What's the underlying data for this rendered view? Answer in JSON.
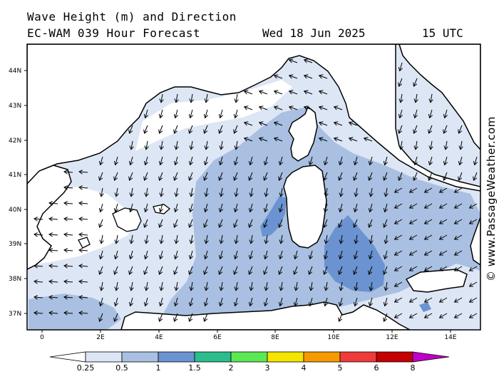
{
  "header": {
    "title": "Wave Height (m) and Direction",
    "model": "EC-WAM 039 Hour Forecast",
    "date": "Wed 18 Jun 2025",
    "time": "15 UTC"
  },
  "credit": "© www.PassageWeather.com",
  "lat_labels": [
    "44N",
    "43N",
    "42N",
    "41N",
    "40N",
    "39N",
    "38N",
    "37N"
  ],
  "lon_labels": [
    "0",
    "2E",
    "4E",
    "6E",
    "8E",
    "10E",
    "12E",
    "14E"
  ],
  "legend": {
    "labels": [
      "0.25",
      "0.5",
      "1",
      "1.5",
      "2",
      "3",
      "4",
      "5",
      "6",
      "8"
    ],
    "colors": [
      "#ffffff",
      "#dde6f4",
      "#a9c0e2",
      "#6b93d1",
      "#2bbd8d",
      "#5ce855",
      "#f4e500",
      "#f79a00",
      "#ef3b3b",
      "#c40000",
      "#c000c8"
    ]
  },
  "colors": {
    "land": "#ffffff",
    "sea_calm": "#dde6f4",
    "sea_mid": "#a9c0e2",
    "sea_high": "#6b93d1"
  },
  "wave_direction_icon": "arrow-icon"
}
